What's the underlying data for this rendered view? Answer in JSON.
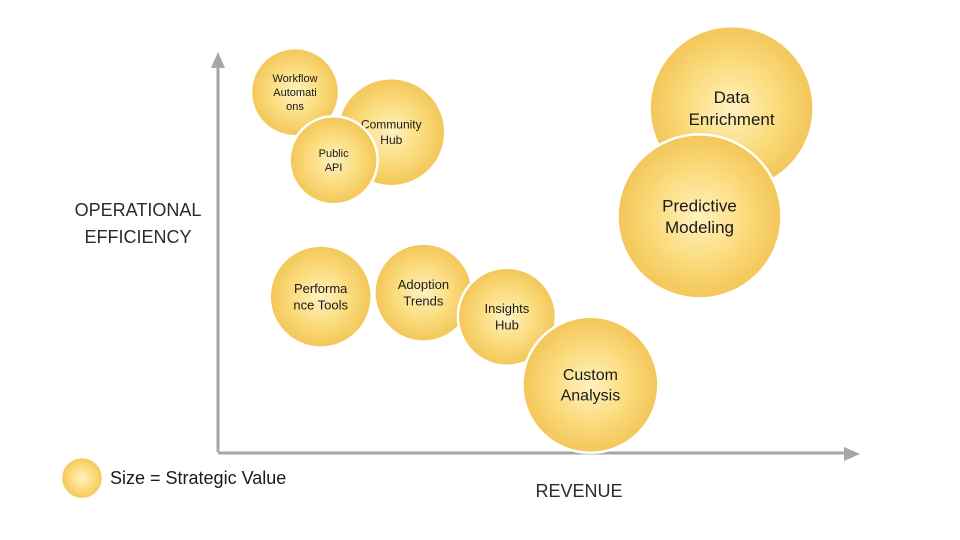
{
  "colors": {
    "bubble_center": "#fff2c0",
    "bubble_mid": "#fbdc7e",
    "bubble_edge": "#f3c658",
    "axis": "#a6a6a6"
  },
  "legend": {
    "label": "Size = Strategic Value"
  },
  "chart_data": {
    "type": "bubble",
    "title": "",
    "xlabel": "REVENUE",
    "ylabel": [
      "OPERATIONAL",
      "EFFICIENCY"
    ],
    "size_meaning": "Strategic Value",
    "grid": false,
    "legend_position": "bottom-left",
    "xlim": [
      0,
      100
    ],
    "ylim": [
      0,
      100
    ],
    "points": [
      {
        "label": [
          "Workflow",
          "Automati",
          "ons"
        ],
        "x": 12,
        "y": 90,
        "size": 44
      },
      {
        "label": [
          "Community",
          "Hub"
        ],
        "x": 27,
        "y": 80,
        "size": 54
      },
      {
        "label": [
          "Public",
          "API"
        ],
        "x": 18,
        "y": 73,
        "size": 44
      },
      {
        "label": [
          "Data",
          "Enrichment"
        ],
        "x": 80,
        "y": 86,
        "size": 82
      },
      {
        "label": [
          "Predictive",
          "Modeling"
        ],
        "x": 75,
        "y": 59,
        "size": 82
      },
      {
        "label": [
          "Performa",
          "nce Tools"
        ],
        "x": 16,
        "y": 39,
        "size": 51
      },
      {
        "label": [
          "Adoption",
          "Trends"
        ],
        "x": 32,
        "y": 40,
        "size": 49
      },
      {
        "label": [
          "Insights",
          "Hub"
        ],
        "x": 45,
        "y": 34,
        "size": 49
      },
      {
        "label": [
          "Custom",
          "Analysis"
        ],
        "x": 58,
        "y": 17,
        "size": 68
      }
    ]
  }
}
